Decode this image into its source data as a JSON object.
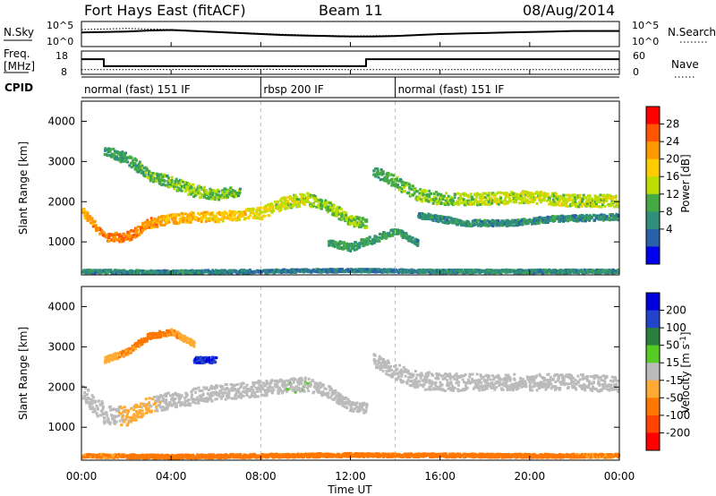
{
  "header": {
    "title": "Fort Hays East (fitACF)",
    "beam": "Beam 11",
    "date": "08/Aug/2014"
  },
  "noise_panel": {
    "left_label": "N.Sky",
    "right_label": "N.Search",
    "left_ticks": [
      "10^5",
      "10^0"
    ],
    "right_ticks": [
      "10^5",
      "10^0"
    ]
  },
  "freq_panel": {
    "left_label_line1": "Freq.",
    "left_label_line2": "[MHz]",
    "right_label": "Nave",
    "left_ticks": [
      "18",
      "8"
    ],
    "right_ticks": [
      "60",
      "0"
    ]
  },
  "cpid_panel": {
    "label": "CPID",
    "modes": [
      {
        "start_hour": 0.0,
        "name": "normal (fast) 151 IF"
      },
      {
        "start_hour": 8.0,
        "name": "rbsp 200 IF"
      },
      {
        "start_hour": 14.0,
        "name": "normal (fast) 151 IF"
      }
    ]
  },
  "x_axis": {
    "label": "Time UT",
    "ticks": [
      "00:00",
      "04:00",
      "08:00",
      "12:00",
      "16:00",
      "20:00",
      "00:00"
    ]
  },
  "power_colorbar": {
    "label": "Power [dB]",
    "ticks": [
      "28",
      "24",
      "20",
      "16",
      "12",
      "8",
      "4"
    ],
    "colors": [
      "#ff0000",
      "#ff5500",
      "#ff9900",
      "#ffcc00",
      "#bbdd00",
      "#44aa44",
      "#2f8f7a",
      "#2a5faa",
      "#0000ee"
    ]
  },
  "velocity_colorbar": {
    "label_main": "Velocity [m s",
    "label_exp": "-1",
    "label_close": "]",
    "ticks": [
      "200",
      "100",
      "50",
      "15",
      "-15",
      "-50",
      "-100",
      "-200"
    ],
    "colors": [
      "#0000dd",
      "#2244cc",
      "#2a7f3f",
      "#55cc22",
      "#bbbbbb",
      "#ffaa33",
      "#ff7700",
      "#ff4400",
      "#ff0000"
    ]
  },
  "chart_data": [
    {
      "type": "line",
      "title": "N.Sky / N.Search",
      "xlabel": "Time UT",
      "xlim": [
        0,
        24
      ],
      "ylim_log10": [
        0,
        5
      ],
      "series": [
        {
          "name": "N.Sky",
          "x": [
            0,
            1,
            2,
            3,
            4,
            5,
            6,
            7,
            8,
            9,
            10,
            11,
            12,
            13,
            14,
            15,
            16,
            17,
            18,
            19,
            20,
            21,
            22,
            23,
            24
          ],
          "y_log10": [
            2.8,
            2.9,
            3.0,
            3.2,
            3.3,
            3.1,
            2.9,
            2.7,
            2.5,
            2.3,
            2.2,
            2.1,
            2.0,
            2.0,
            2.1,
            2.3,
            2.5,
            2.6,
            2.7,
            2.8,
            2.9,
            3.0,
            3.1,
            3.1,
            3.1
          ]
        },
        {
          "name": "N.Search",
          "x": [
            0,
            2,
            4,
            6,
            8,
            10,
            12,
            14,
            16,
            18,
            20,
            22,
            24
          ],
          "y_log10": [
            3.4,
            3.6,
            3.4,
            3.0,
            2.6,
            2.3,
            2.1,
            2.2,
            2.5,
            2.7,
            2.9,
            3.1,
            3.2
          ]
        }
      ]
    },
    {
      "type": "line",
      "title": "Freq. [MHz] / Nave",
      "xlabel": "Time UT",
      "xlim": [
        0,
        24
      ],
      "ylim": [
        8,
        18
      ],
      "series": [
        {
          "name": "Freq.",
          "x": [
            0,
            1.0,
            1.0,
            12.7,
            12.7,
            24
          ],
          "y": [
            14.5,
            14.5,
            11.5,
            11.5,
            14.5,
            14.5
          ]
        },
        {
          "name": "Nave",
          "x": [
            0,
            1,
            8,
            12.7,
            14,
            24
          ],
          "y_nave": [
            12,
            12,
            13,
            12,
            12,
            12
          ],
          "ylim_nave": [
            0,
            60
          ]
        }
      ]
    },
    {
      "type": "heatmap",
      "title": "Power [dB]",
      "xlabel": "Time UT",
      "ylabel": "Slant Range [km]",
      "xlim": [
        0,
        24
      ],
      "ylim": [
        180,
        4500
      ],
      "colorbar_ticks": [
        4,
        8,
        12,
        16,
        20,
        24,
        28
      ],
      "bands": [
        {
          "x": [
            0.0,
            1.0,
            2.0,
            3.0,
            4.0,
            5.0,
            6.0,
            7.0,
            8.0,
            9.0,
            10.0,
            11.0,
            12.0,
            12.7
          ],
          "center_km": [
            1800,
            1150,
            1150,
            1500,
            1600,
            1650,
            1650,
            1700,
            1750,
            2000,
            2100,
            1900,
            1550,
            1500
          ],
          "width_km": [
            200,
            200,
            250,
            250,
            250,
            250,
            250,
            250,
            300,
            300,
            300,
            300,
            250,
            250
          ],
          "db": [
            22,
            26,
            26,
            24,
            22,
            22,
            20,
            20,
            18,
            16,
            16,
            14,
            14,
            12
          ]
        },
        {
          "x": [
            1.0,
            2.0,
            3.0,
            4.0,
            5.0,
            6.0,
            7.0
          ],
          "center_km": [
            3300,
            3100,
            2700,
            2500,
            2300,
            2200,
            2300
          ],
          "width_km": [
            200,
            300,
            300,
            300,
            300,
            250,
            250
          ],
          "db": [
            10,
            10,
            12,
            12,
            14,
            14,
            12
          ]
        },
        {
          "x": [
            13.0,
            14.0,
            15.0,
            16.0,
            18.0,
            20.0,
            22.0,
            24.0
          ],
          "center_km": [
            2800,
            2500,
            2200,
            2100,
            2100,
            2150,
            2050,
            2050
          ],
          "width_km": [
            250,
            300,
            300,
            300,
            300,
            300,
            300,
            300
          ],
          "db": [
            10,
            12,
            14,
            14,
            16,
            16,
            16,
            16
          ]
        },
        {
          "x": [
            11.0,
            12.0,
            13.0,
            14.0,
            15.0
          ],
          "center_km": [
            1000,
            900,
            1100,
            1300,
            1000
          ],
          "width_km": [
            150,
            200,
            200,
            150,
            150
          ],
          "db": [
            10,
            10,
            10,
            10,
            8
          ]
        },
        {
          "x": [
            15.0,
            17.0,
            19.0,
            21.0,
            24.0
          ],
          "center_km": [
            1700,
            1500,
            1500,
            1600,
            1650
          ],
          "width_km": [
            150,
            150,
            150,
            150,
            150
          ],
          "db": [
            8,
            8,
            8,
            8,
            8
          ]
        },
        {
          "x": [
            0.0,
            4.0,
            8.0,
            12.0,
            16.0,
            20.0,
            24.0
          ],
          "center_km": [
            300,
            280,
            300,
            320,
            300,
            300,
            300
          ],
          "width_km": [
            80,
            80,
            80,
            80,
            80,
            80,
            80
          ],
          "db": [
            8,
            8,
            6,
            6,
            8,
            8,
            8
          ]
        }
      ]
    },
    {
      "type": "heatmap",
      "title": "Velocity [m s-1]",
      "xlabel": "Time UT",
      "ylabel": "Slant Range [km]",
      "xlim": [
        0,
        24
      ],
      "ylim": [
        180,
        4500
      ],
      "colorbar_ticks": [
        -200,
        -100,
        -50,
        -15,
        15,
        50,
        100,
        200
      ],
      "bands": [
        {
          "x": [
            0.0,
            1.0,
            2.0,
            3.0,
            4.0,
            5.0,
            6.0,
            7.0,
            8.0,
            9.0,
            10.0,
            11.0,
            12.0,
            12.7
          ],
          "center_km": [
            1900,
            1350,
            1300,
            1600,
            1700,
            1800,
            1900,
            1950,
            2000,
            2050,
            2100,
            1900,
            1550,
            1500
          ],
          "width_km": [
            400,
            500,
            450,
            400,
            400,
            400,
            400,
            400,
            400,
            350,
            350,
            300,
            250,
            250
          ],
          "vel": [
            0,
            0,
            -20,
            -20,
            0,
            0,
            0,
            0,
            0,
            10,
            10,
            0,
            0,
            0
          ]
        },
        {
          "x": [
            13.0,
            14.0,
            15.0,
            16.0,
            18.0,
            20.0,
            22.0,
            24.0
          ],
          "center_km": [
            2700,
            2400,
            2200,
            2150,
            2150,
            2150,
            2150,
            2100
          ],
          "width_km": [
            300,
            400,
            450,
            450,
            400,
            400,
            400,
            400
          ],
          "vel": [
            0,
            0,
            0,
            0,
            0,
            0,
            0,
            0
          ]
        },
        {
          "x": [
            1.0,
            2.0,
            3.0,
            4.0,
            5.0
          ],
          "center_km": [
            2700,
            2900,
            3300,
            3400,
            3100
          ],
          "width_km": [
            150,
            150,
            150,
            150,
            150
          ],
          "vel": [
            -40,
            -50,
            -60,
            -50,
            -40
          ]
        },
        {
          "x": [
            5.0,
            5.5,
            6.0
          ],
          "center_km": [
            2700,
            2700,
            2700
          ],
          "width_km": [
            150,
            150,
            150
          ],
          "vel": [
            200,
            200,
            200
          ]
        },
        {
          "x": [
            0.0,
            4.0,
            8.0,
            12.0,
            16.0,
            20.0,
            24.0
          ],
          "center_km": [
            320,
            300,
            320,
            340,
            330,
            320,
            320
          ],
          "width_km": [
            90,
            90,
            90,
            90,
            90,
            90,
            90
          ],
          "vel": [
            -50,
            -60,
            -60,
            -80,
            -60,
            -60,
            -50
          ]
        }
      ]
    }
  ]
}
